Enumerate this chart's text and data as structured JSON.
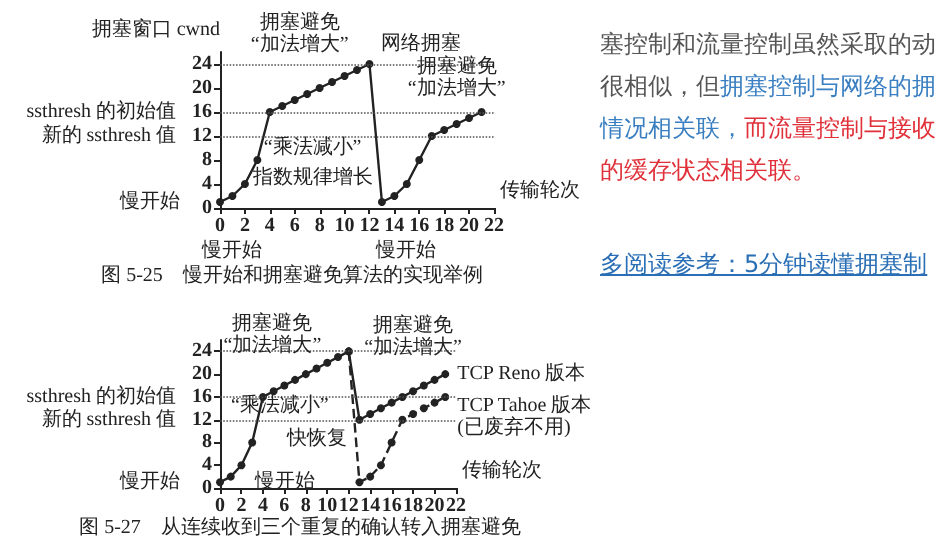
{
  "chart_data": [
    {
      "type": "line",
      "title": "图 5-25　慢开始和拥塞避免算法的实现举例",
      "xlabel": "传输轮次",
      "ylabel": "拥塞窗口 cwnd",
      "xlim": [
        0,
        22
      ],
      "ylim": [
        0,
        26
      ],
      "xticks": [
        0,
        2,
        4,
        6,
        8,
        10,
        12,
        14,
        16,
        18,
        20,
        22
      ],
      "yticks": [
        0,
        4,
        8,
        12,
        16,
        20,
        24
      ],
      "marker": "circle",
      "line_style": "solid",
      "x": [
        0,
        1,
        2,
        3,
        4,
        5,
        6,
        7,
        8,
        9,
        10,
        11,
        12,
        13,
        14,
        15,
        16,
        17,
        18,
        19,
        20,
        21
      ],
      "series": [
        {
          "color": "#222222",
          "values": [
            1,
            2,
            4,
            8,
            16,
            17,
            18,
            19,
            20,
            21,
            22,
            23,
            24,
            1,
            2,
            4,
            8,
            12,
            13,
            14,
            15,
            16
          ]
        }
      ],
      "ref_lines": [
        {
          "axis": "y",
          "value": 24,
          "label": null,
          "color": "#555555",
          "line_style": "dotted"
        },
        {
          "axis": "y",
          "value": 16,
          "label": "ssthresh 的初始值",
          "color": "#555555",
          "line_style": "dotted"
        },
        {
          "axis": "y",
          "value": 12,
          "label": "新的 ssthresh 值",
          "color": "#555555",
          "line_style": "dotted"
        }
      ],
      "annotations": [
        {
          "text": "网络拥塞",
          "x": 12,
          "y": 24
        },
        {
          "text": "拥塞避免\n“加法增大”",
          "x": 8,
          "y": 20
        },
        {
          "text": "“乘法减小”",
          "x": 12,
          "y": 18
        },
        {
          "text": "拥塞避免\n“加法增大”",
          "x": 19,
          "y": 15
        },
        {
          "text": "指数规律增长",
          "x": 3,
          "y": 8
        },
        {
          "text": "慢开始",
          "x": 0,
          "y": 1
        },
        "慢开始",
        "慢开始"
      ]
    },
    {
      "type": "line",
      "title": "图 5-27　从连续收到三个重复的确认转入拥塞避免",
      "xlabel": "传输轮次",
      "xlim": [
        0,
        22
      ],
      "ylim": [
        0,
        26
      ],
      "xticks": [
        0,
        2,
        4,
        6,
        8,
        10,
        12,
        14,
        16,
        18,
        20,
        22
      ],
      "yticks": [
        0,
        4,
        8,
        12,
        16,
        20,
        24
      ],
      "marker": "circle",
      "line_style": "solid",
      "x": [
        0,
        1,
        2,
        3,
        4,
        5,
        6,
        7,
        8,
        9,
        10,
        11,
        12,
        13,
        14,
        15,
        16,
        17,
        18,
        19,
        20,
        21
      ],
      "series": [
        {
          "name": "TCP Reno 版本",
          "color": "#222222",
          "values": [
            1,
            2,
            4,
            8,
            16,
            17,
            18,
            19,
            20,
            21,
            22,
            23,
            24,
            12,
            13,
            14,
            15,
            16,
            17,
            18,
            19,
            20
          ]
        },
        {
          "name": "TCP Tahoe 版本\n(已废弃不用)",
          "color": "#222222",
          "line_style": "dashed",
          "x": [
            12,
            13,
            14,
            15,
            16,
            17,
            18,
            19,
            20,
            21
          ],
          "values": [
            24,
            1,
            2,
            4,
            8,
            12,
            13,
            14,
            15,
            16
          ]
        }
      ],
      "ref_lines": [
        {
          "axis": "y",
          "value": 24,
          "label": null,
          "color": "#555555",
          "line_style": "dotted"
        },
        {
          "axis": "y",
          "value": 16,
          "label": "ssthresh 的初始值",
          "color": "#555555",
          "line_style": "dotted"
        },
        {
          "axis": "y",
          "value": 12,
          "label": "新的 ssthresh 值",
          "color": "#555555",
          "line_style": "dotted"
        }
      ],
      "annotations": [
        {
          "text": "拥塞避免\n“加法增大”",
          "x": 7.5,
          "y": 19.5
        },
        {
          "text": "“乘法减小”",
          "x": 12,
          "y": 18
        },
        {
          "text": "快恢复",
          "x": 13,
          "y": 12
        },
        {
          "text": "拥塞避免\n“加法增大”",
          "x": 18,
          "y": 17
        },
        {
          "text": "慢开始",
          "x": 0,
          "y": 1
        },
        {
          "text": "慢开始",
          "x": 13,
          "y": 1
        }
      ]
    },
    {
      "type": "other",
      "annotations": [
        "塞控制和流量控制虽然采取的动很相似，但",
        "拥塞控制与网络的拥情况相关联，",
        "而流量控制与接收的缓存状态相关联。",
        "多阅读参考：5分钟读懂拥塞制"
      ],
      "colors": [
        "#555555",
        "#3a7fc1",
        "#e0303a",
        "#2a6fb5"
      ]
    }
  ]
}
